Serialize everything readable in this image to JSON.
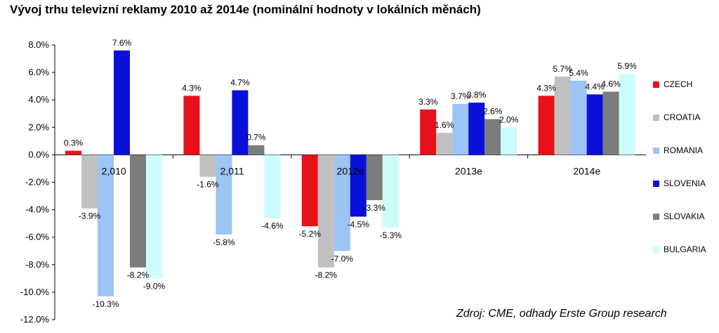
{
  "chart_data": {
    "type": "bar",
    "title": "Vývoj trhu televizní reklamy 2010 až 2014e (nominální hodnoty v lokálních měnách)",
    "categories": [
      "2,010",
      "2,011",
      "2012e",
      "2013e",
      "2014e"
    ],
    "series": [
      {
        "name": "CZECH",
        "color": "#e8101a",
        "values": [
          0.3,
          4.3,
          -5.2,
          3.3,
          4.3
        ],
        "labels": [
          "0.3%",
          "4.3%",
          "-5.2%",
          "3.3%",
          "4.3%"
        ]
      },
      {
        "name": "CROATIA",
        "color": "#c0c0c0",
        "values": [
          -3.9,
          -1.6,
          -8.2,
          1.6,
          5.7
        ],
        "labels": [
          "-3.9%",
          "-1.6%",
          "-8.2%",
          "1.6%",
          "5.7%"
        ]
      },
      {
        "name": "ROMANIA",
        "color": "#9cc4f4",
        "values": [
          -10.3,
          -5.8,
          -7.0,
          3.7,
          5.4
        ],
        "labels": [
          "-10.3%",
          "-5.8%",
          "-7.0%",
          "3.7%",
          "5.4%"
        ]
      },
      {
        "name": "SLOVENIA",
        "color": "#0a10d8",
        "values": [
          7.6,
          4.7,
          -4.5,
          3.8,
          4.4
        ],
        "labels": [
          "7.6%",
          "4.7%",
          "-4.5%",
          "3.8%",
          "4.4%"
        ]
      },
      {
        "name": "SLOVAKIA",
        "color": "#7c7c7c",
        "values": [
          -8.2,
          0.7,
          -3.3,
          2.6,
          4.6
        ],
        "labels": [
          "-8.2%",
          "0.7%",
          "-3.3%",
          "2.6%",
          "4.6%"
        ]
      },
      {
        "name": "BULGARIA",
        "color": "#ccfcfc",
        "values": [
          -9.0,
          -4.6,
          -5.3,
          2.0,
          5.9
        ],
        "labels": [
          "-9.0%",
          "-4.6%",
          "-5.3%",
          "2.0%",
          "5.9%"
        ]
      }
    ],
    "yticks": [
      "8.0%",
      "6.0%",
      "4.0%",
      "2.0%",
      "0.0%",
      "-2.0%",
      "-4.0%",
      "-6.0%",
      "-8.0%",
      "-10.0%",
      "-12.0%"
    ],
    "ylim": [
      -12,
      8
    ],
    "legend_position": "right",
    "grid": false,
    "source": "Zdroj: CME, odhady Erste Group research"
  }
}
